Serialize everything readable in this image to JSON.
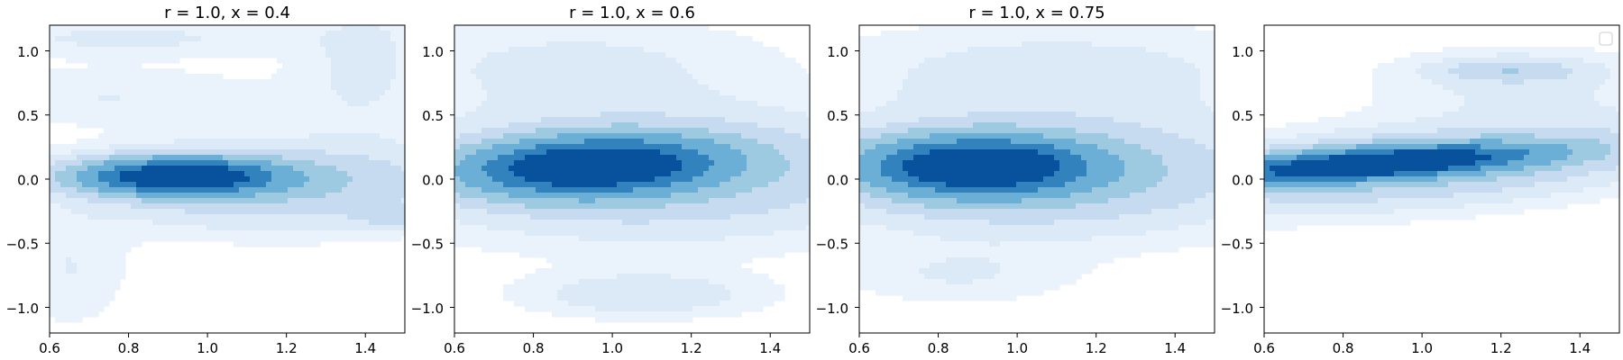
{
  "chart_data": [
    {
      "type": "contour",
      "title": "r = 1.0, x = 0.4",
      "xlim": [
        0.6,
        1.5
      ],
      "ylim": [
        -1.2,
        1.2
      ],
      "xticks": [
        "0.6",
        "0.8",
        "1.0",
        "1.2",
        "1.4"
      ],
      "yticks": [
        "−1.0",
        "−0.5",
        "0.0",
        "0.5",
        "1.0"
      ],
      "legend": false,
      "blobs": [
        {
          "cx": 0.93,
          "cy": 0.02,
          "sx": 0.16,
          "sy": 0.09,
          "rho": 0.0,
          "w": 1.0
        },
        {
          "cx": 1.18,
          "cy": -0.05,
          "sx": 0.32,
          "sy": 0.22,
          "rho": 0.0,
          "w": 0.18
        },
        {
          "cx": 0.8,
          "cy": 1.1,
          "sx": 0.3,
          "sy": 0.1,
          "rho": 0.0,
          "w": 0.06
        },
        {
          "cx": 1.4,
          "cy": 0.9,
          "sx": 0.12,
          "sy": 0.4,
          "rho": 0.0,
          "w": 0.06
        },
        {
          "cx": 0.75,
          "cy": 0.65,
          "sx": 0.3,
          "sy": 0.15,
          "rho": 0.0,
          "w": 0.05
        },
        {
          "cx": 1.47,
          "cy": -0.3,
          "sx": 0.06,
          "sy": 0.05,
          "rho": 0.0,
          "w": 0.09
        },
        {
          "cx": 0.65,
          "cy": -0.7,
          "sx": 0.1,
          "sy": 0.3,
          "rho": 0.0,
          "w": 0.05
        }
      ]
    },
    {
      "type": "contour",
      "title": "r = 1.0, x = 0.6",
      "xlim": [
        0.6,
        1.5
      ],
      "ylim": [
        -1.2,
        1.2
      ],
      "xticks": [
        "0.6",
        "0.8",
        "1.0",
        "1.2",
        "1.4"
      ],
      "yticks": [
        "−1.0",
        "−0.5",
        "0.0",
        "0.5",
        "1.0"
      ],
      "legend": false,
      "blobs": [
        {
          "cx": 0.95,
          "cy": 0.1,
          "sx": 0.2,
          "sy": 0.14,
          "rho": 0.15,
          "w": 1.0
        },
        {
          "cx": 1.1,
          "cy": 0.05,
          "sx": 0.4,
          "sy": 0.32,
          "rho": 0.0,
          "w": 0.2
        },
        {
          "cx": 1.08,
          "cy": -0.9,
          "sx": 0.2,
          "sy": 0.12,
          "rho": 0.0,
          "w": 0.09
        },
        {
          "cx": 0.9,
          "cy": 0.9,
          "sx": 0.35,
          "sy": 0.25,
          "rho": 0.0,
          "w": 0.06
        }
      ]
    },
    {
      "type": "contour",
      "title": "r = 1.0, x = 0.75",
      "xlim": [
        0.6,
        1.5
      ],
      "ylim": [
        -1.2,
        1.2
      ],
      "xticks": [
        "0.6",
        "0.8",
        "1.0",
        "1.2",
        "1.4"
      ],
      "yticks": [
        "−1.0",
        "−0.5",
        "0.0",
        "0.5",
        "1.0"
      ],
      "legend": false,
      "blobs": [
        {
          "cx": 0.9,
          "cy": 0.1,
          "sx": 0.18,
          "sy": 0.14,
          "rho": 0.0,
          "w": 1.0
        },
        {
          "cx": 1.05,
          "cy": 0.05,
          "sx": 0.38,
          "sy": 0.3,
          "rho": 0.0,
          "w": 0.22
        },
        {
          "cx": 1.1,
          "cy": 0.85,
          "sx": 0.4,
          "sy": 0.25,
          "rho": 0.0,
          "w": 0.07
        },
        {
          "cx": 0.85,
          "cy": -0.75,
          "sx": 0.2,
          "sy": 0.15,
          "rho": 0.0,
          "w": 0.05
        }
      ]
    },
    {
      "type": "contour",
      "title": "",
      "xlim": [
        0.6,
        1.5
      ],
      "ylim": [
        -1.2,
        1.2
      ],
      "xticks": [
        "0.6",
        "0.8",
        "1.0",
        "1.2",
        "1.4"
      ],
      "yticks": [
        "−1.0",
        "−0.5",
        "0.0",
        "0.5",
        "1.0"
      ],
      "legend": true,
      "legend_position": "top-right",
      "blobs": [
        {
          "cx": 0.88,
          "cy": 0.12,
          "sx": 0.26,
          "sy": 0.09,
          "rho": 0.55,
          "w": 1.0
        },
        {
          "cx": 1.0,
          "cy": 0.1,
          "sx": 0.42,
          "sy": 0.22,
          "rho": 0.45,
          "w": 0.22
        },
        {
          "cx": 1.22,
          "cy": 0.85,
          "sx": 0.12,
          "sy": 0.06,
          "rho": 0.0,
          "w": 0.13
        },
        {
          "cx": 1.25,
          "cy": 0.75,
          "sx": 0.25,
          "sy": 0.2,
          "rho": 0.0,
          "w": 0.06
        }
      ]
    }
  ],
  "colormap": [
    "#f7fbff",
    "#eaf2fb",
    "#dce9f6",
    "#c6dbef",
    "#9ecae1",
    "#6baed6",
    "#3182bd",
    "#08519c"
  ]
}
